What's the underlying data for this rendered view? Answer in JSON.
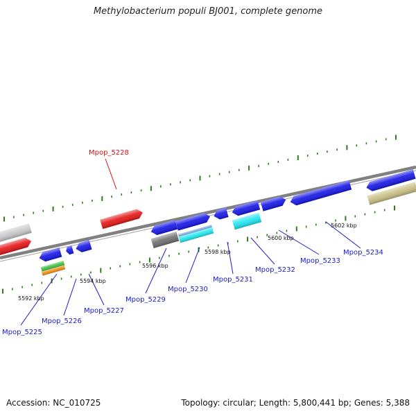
{
  "title": "Methylobacterium populi BJ001, complete genome",
  "footer": {
    "accession": "Accession: NC_010725",
    "stats": "Topology: circular; Length: 5,800,441 bp; Genes: 5,388"
  },
  "colors": {
    "backbone": "#808080",
    "tick": "#2e7d1e",
    "gene_label": "#1a1acc",
    "highlight_label": "#e01010",
    "gene_blue": "#1414e6",
    "gene_red": "#e61414",
    "gene_cyan": "#1ee6f0",
    "gene_gray": "#c8c8c8",
    "gene_darkgray": "#6e6e6e",
    "gene_steel": "#5a8cc8",
    "gene_green": "#3cbe3c",
    "gene_orange": "#f08c14",
    "gene_olive": "#c8be82"
  },
  "scale_labels": [
    "5592 kbp",
    "5594 kbp",
    "5596 kbp",
    "5598 kbp",
    "5600 kbp",
    "5602 kbp"
  ],
  "gene_labels": [
    "Mpop_5225",
    "Mpop_5226",
    "Mpop_5227",
    "Mpop_5228",
    "Mpop_5229",
    "Mpop_5230",
    "Mpop_5231",
    "Mpop_5232",
    "Mpop_5233",
    "Mpop_5234"
  ],
  "highlighted_gene": "Mpop_5228"
}
